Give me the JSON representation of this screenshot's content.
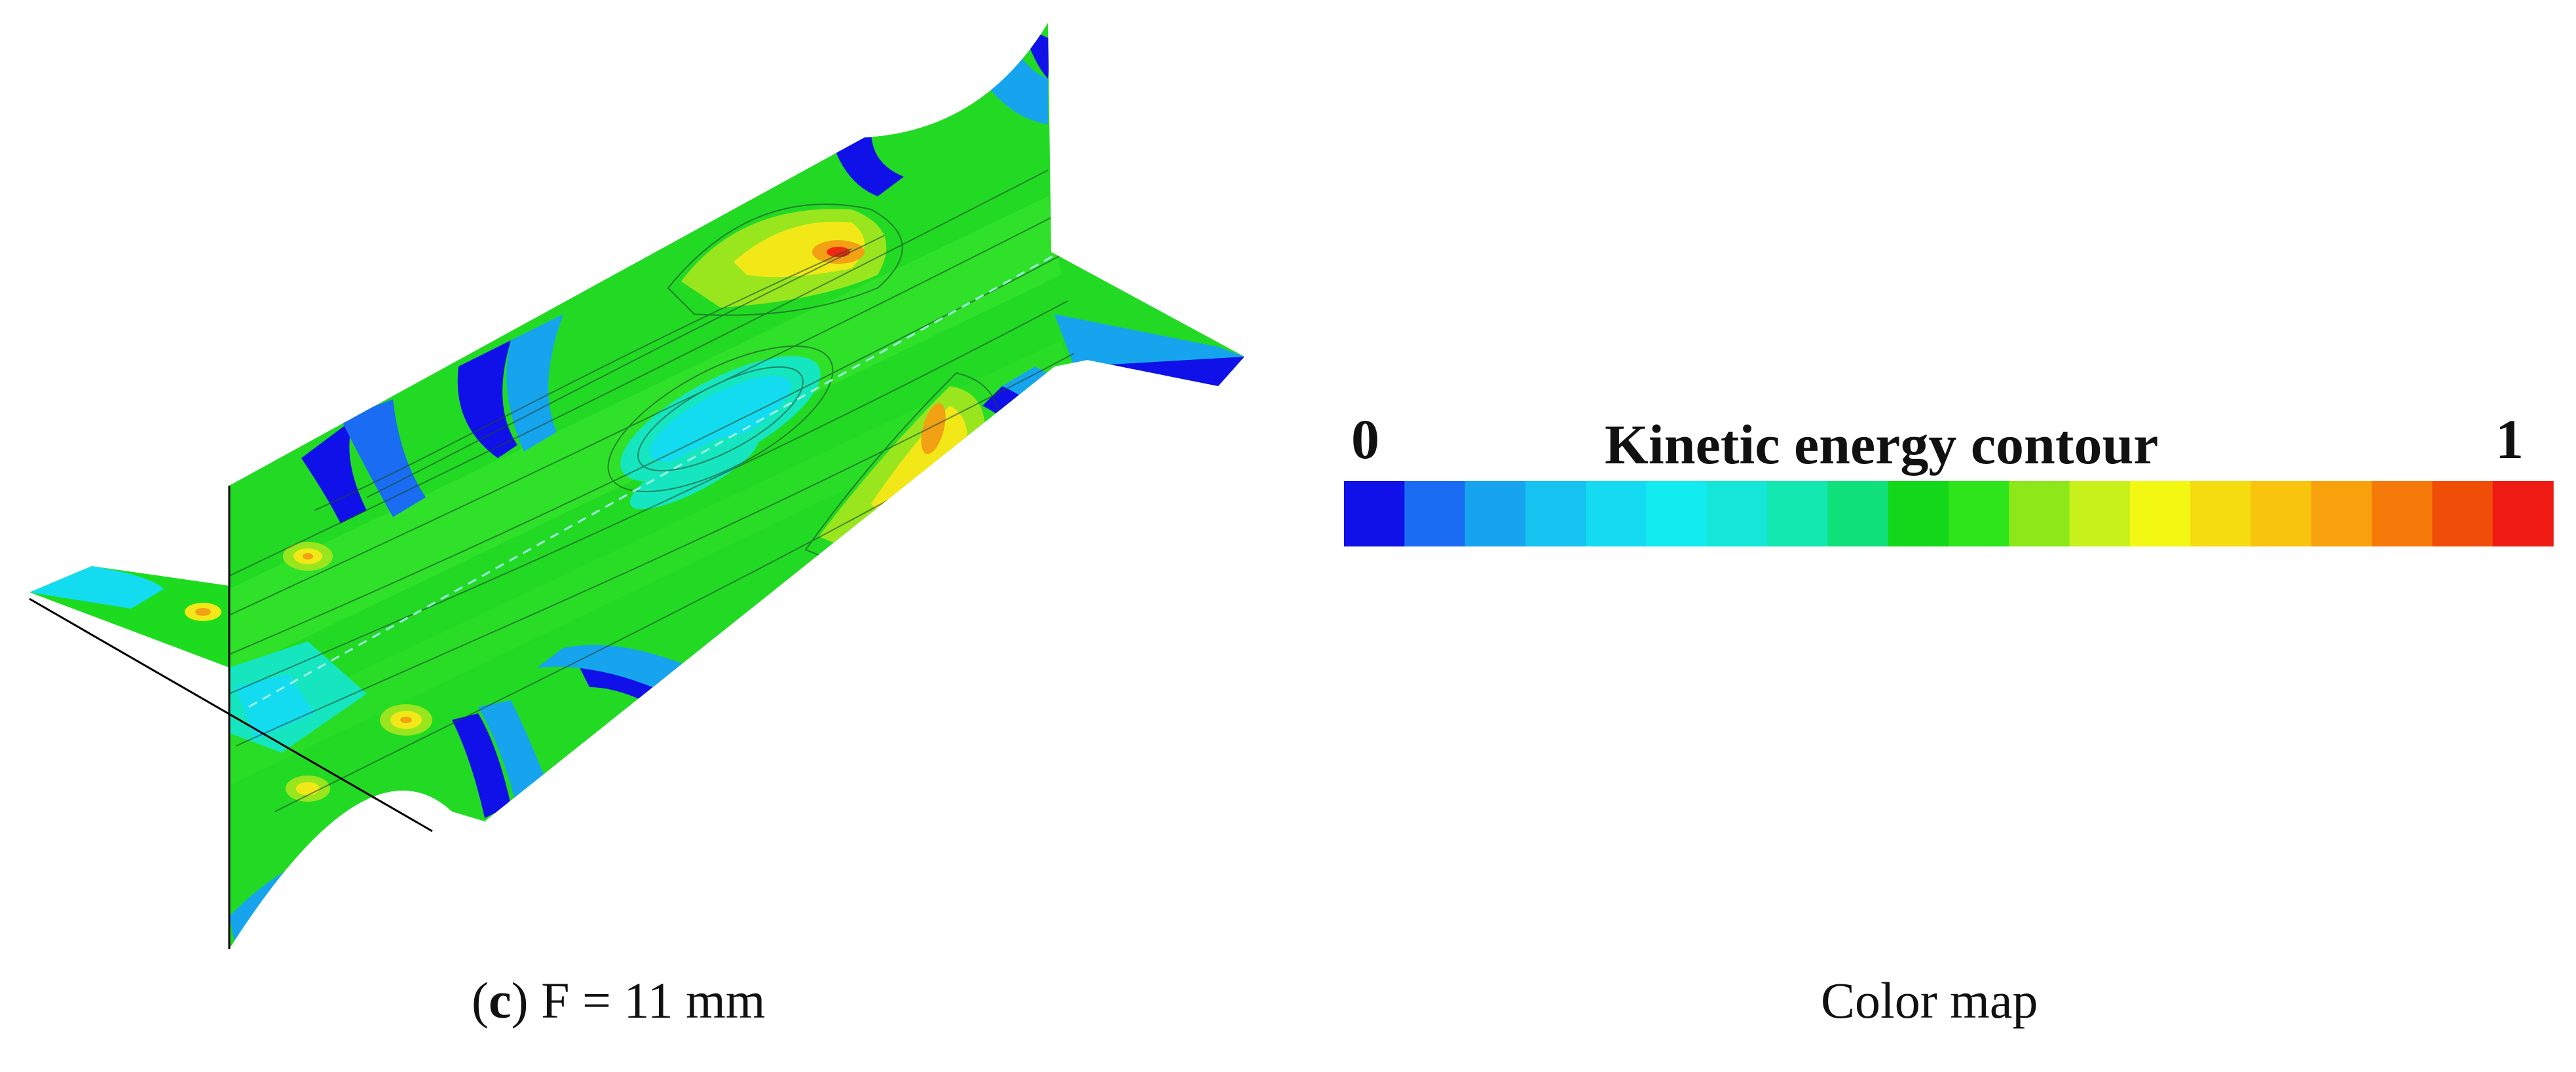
{
  "figure": {
    "subfigure_caption": {
      "letter": "c",
      "text": "F = 11 mm"
    },
    "colormap_caption": "Color map"
  },
  "colorbar": {
    "min_label": "0",
    "max_label": "1",
    "title": "Kinetic energy contour",
    "levels": [
      "#1010e8",
      "#1a6cf2",
      "#17a4ef",
      "#15c2f0",
      "#14dbf2",
      "#12ebf0",
      "#14e6d8",
      "#12e8b0",
      "#10e07a",
      "#13d81a",
      "#2ee41a",
      "#8de81a",
      "#c8f01a",
      "#f2f812",
      "#f5dc10",
      "#f8c40e",
      "#f7a20c",
      "#f57a0a",
      "#f04e08",
      "#f01a14"
    ]
  },
  "contour_palette": {
    "low": "#1010e8",
    "cyan": "#14dcf0",
    "aqua": "#16e6c0",
    "green": "#1ddc20",
    "lime": "#9ae61e",
    "yellow": "#f2e818",
    "orange": "#f2a014",
    "red": "#ef2a10"
  }
}
